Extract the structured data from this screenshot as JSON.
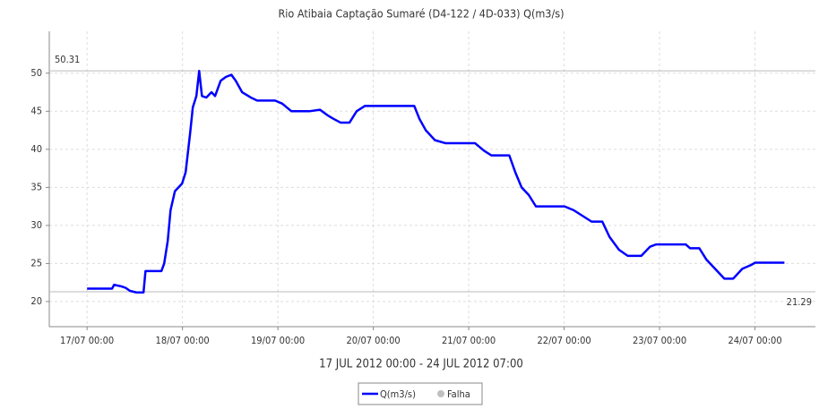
{
  "chart_data": {
    "type": "line",
    "title": "Rio Atibaia Captação Sumaré  (D4-122 / 4D-033) Q(m3/s)",
    "x_label": "17 JUL 2012 00:00 - 24 JUL 2012 07:00",
    "x": [
      0,
      6.3,
      6.8,
      8.6,
      9.7,
      10.8,
      12.4,
      14.2,
      14.7,
      18.7,
      19.4,
      20.3,
      21,
      22.1,
      23.9,
      24.8,
      25.9,
      26.6,
      27.5,
      28.2,
      28.9,
      30,
      31.3,
      32.2,
      33.6,
      34.9,
      36.3,
      37.4,
      39,
      41.2,
      42.8,
      47.3,
      49.1,
      51.4,
      55.9,
      58.6,
      60.4,
      62,
      63.8,
      66,
      67.8,
      69.9,
      82.3,
      83.6,
      85.2,
      87.5,
      90.2,
      97.6,
      99.9,
      101.7,
      106.2,
      107.7,
      109.3,
      111.1,
      112.9,
      120.1,
      122.4,
      126.9,
      129.6,
      131.4,
      133.8,
      136,
      139.4,
      141.6,
      143.1,
      150.6,
      151.7,
      154,
      155.8,
      158.5,
      160.3,
      162.5,
      164.8,
      167,
      168,
      175.4
    ],
    "series": [
      {
        "name": "Q(m3/s)",
        "color": "#0000ff",
        "values": [
          21.7,
          21.7,
          22.2,
          22,
          21.8,
          21.4,
          21.2,
          21.2,
          24,
          24,
          25,
          28,
          32,
          34.5,
          35.5,
          37,
          42,
          45.5,
          47,
          50.3,
          47,
          46.8,
          47.5,
          47,
          49,
          49.5,
          49.8,
          49,
          47.5,
          46.8,
          46.4,
          46.4,
          46,
          45,
          45,
          45.2,
          44.5,
          44,
          43.5,
          43.5,
          45,
          45.7,
          45.7,
          44,
          42.5,
          41.2,
          40.8,
          40.8,
          39.8,
          39.2,
          39.2,
          37,
          35,
          34,
          32.5,
          32.5,
          32,
          30.5,
          30.5,
          28.5,
          26.8,
          26,
          26,
          27.2,
          27.5,
          27.5,
          27,
          27,
          25.5,
          24,
          23,
          23,
          24.3,
          24.8,
          25.1,
          25.1
        ]
      }
    ],
    "legend_extra": {
      "name": "Falha",
      "color": "#c0c0c0"
    },
    "reference_lines": [
      {
        "value": 50.31,
        "label": "50.31"
      },
      {
        "value": 21.29,
        "label": "21.29"
      }
    ],
    "xlim": [
      -9.5,
      183.2
    ],
    "xticks": [
      {
        "value": 0,
        "label": "17/07 00:00"
      },
      {
        "value": 24,
        "label": "18/07 00:00"
      },
      {
        "value": 48,
        "label": "19/07 00:00"
      },
      {
        "value": 72,
        "label": "20/07 00:00"
      },
      {
        "value": 96,
        "label": "21/07 00:00"
      },
      {
        "value": 120,
        "label": "22/07 00:00"
      },
      {
        "value": 144,
        "label": "23/07 00:00"
      },
      {
        "value": 168,
        "label": "24/07 00:00"
      }
    ],
    "ylim": [
      16.7,
      55.5
    ],
    "yticks": [
      20,
      25,
      30,
      35,
      40,
      45,
      50
    ],
    "grid": true
  }
}
